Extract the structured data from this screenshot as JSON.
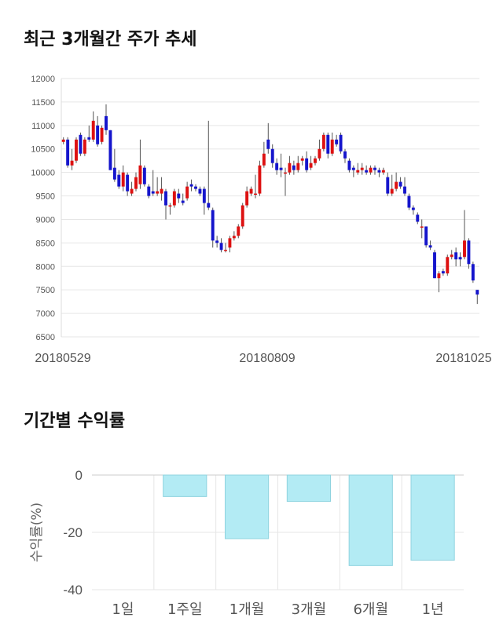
{
  "titles": {
    "price_trend": "최근 3개월간 주가 추세",
    "period_returns": "기간별 수익률"
  },
  "colors": {
    "up": "#dd1111",
    "down": "#1515cc",
    "bar_fill": "#b3ebf4",
    "bar_stroke": "#8fd3df",
    "grid": "#e6e6e6"
  },
  "chart_data": [
    {
      "type": "candlestick",
      "ylim": [
        6500,
        12000
      ],
      "yticks": [
        6500,
        7000,
        7500,
        8000,
        8500,
        9000,
        9500,
        10000,
        10500,
        11000,
        11500,
        12000
      ],
      "xtick_labels": [
        "20180529",
        "20180809",
        "20181025"
      ],
      "grid": true,
      "candles": [
        [
          10650,
          10700,
          10600,
          10750
        ],
        [
          10700,
          10150,
          10100,
          10750
        ],
        [
          10150,
          10250,
          10050,
          10500
        ],
        [
          10250,
          10700,
          10200,
          10750
        ],
        [
          10800,
          10400,
          10350,
          10850
        ],
        [
          10400,
          10700,
          10350,
          10750
        ],
        [
          10750,
          10700,
          10650,
          11000
        ],
        [
          10700,
          11100,
          10650,
          11300
        ],
        [
          11000,
          10600,
          10550,
          11200
        ],
        [
          10650,
          10950,
          10600,
          11000
        ],
        [
          11200,
          10900,
          10800,
          11450
        ],
        [
          10900,
          10050,
          10050,
          10900
        ],
        [
          10100,
          9850,
          9800,
          10500
        ],
        [
          9950,
          9700,
          9650,
          10050
        ],
        [
          9700,
          10000,
          9600,
          10150
        ],
        [
          9950,
          9600,
          9500,
          10000
        ],
        [
          9550,
          9650,
          9500,
          9800
        ],
        [
          9650,
          9900,
          9600,
          10000
        ],
        [
          9750,
          10150,
          9650,
          10700
        ],
        [
          10100,
          9750,
          9700,
          10150
        ],
        [
          9700,
          9500,
          9450,
          9750
        ],
        [
          9600,
          9550,
          9500,
          10050
        ],
        [
          9550,
          9600,
          9500,
          9900
        ],
        [
          9550,
          9650,
          9400,
          9900
        ],
        [
          9600,
          9300,
          9000,
          9650
        ],
        [
          9300,
          9300,
          9100,
          9350
        ],
        [
          9300,
          9600,
          9250,
          9650
        ],
        [
          9550,
          9450,
          9350,
          9650
        ],
        [
          9400,
          9350,
          9300,
          9550
        ],
        [
          9450,
          9700,
          9400,
          9800
        ],
        [
          9750,
          9700,
          9600,
          9850
        ],
        [
          9700,
          9650,
          9600,
          9750
        ],
        [
          9650,
          9550,
          9500,
          9700
        ],
        [
          9650,
          9350,
          9100,
          9700
        ],
        [
          9350,
          9250,
          9200,
          11100
        ],
        [
          9200,
          8550,
          8400,
          9250
        ],
        [
          8550,
          8500,
          8400,
          8650
        ],
        [
          8500,
          8350,
          8300,
          8600
        ],
        [
          8350,
          8350,
          8300,
          8500
        ],
        [
          8400,
          8600,
          8300,
          8650
        ],
        [
          8600,
          8650,
          8550,
          8750
        ],
        [
          8650,
          8850,
          8600,
          8900
        ],
        [
          8850,
          9300,
          8800,
          9350
        ],
        [
          9300,
          9600,
          9250,
          9700
        ],
        [
          9550,
          9650,
          9500,
          9700
        ],
        [
          9550,
          9550,
          9450,
          9950
        ],
        [
          9550,
          10150,
          9500,
          10250
        ],
        [
          10150,
          10400,
          10100,
          10650
        ],
        [
          10700,
          10500,
          10400,
          11050
        ],
        [
          10500,
          10200,
          10100,
          10600
        ],
        [
          10200,
          10050,
          9950,
          10300
        ],
        [
          10100,
          10050,
          9900,
          10400
        ],
        [
          10000,
          10000,
          9500,
          10100
        ],
        [
          10000,
          10200,
          9950,
          10350
        ],
        [
          10150,
          10050,
          9950,
          10250
        ],
        [
          10050,
          10200,
          10000,
          10350
        ],
        [
          10250,
          10300,
          10150,
          10350
        ],
        [
          10300,
          10050,
          10000,
          10450
        ],
        [
          10100,
          10200,
          10050,
          10350
        ],
        [
          10200,
          10300,
          10150,
          10350
        ],
        [
          10300,
          10500,
          10250,
          10700
        ],
        [
          10500,
          10800,
          10450,
          10850
        ],
        [
          10800,
          10400,
          10300,
          10850
        ],
        [
          10400,
          10700,
          10350,
          10850
        ],
        [
          10700,
          10600,
          10550,
          10800
        ],
        [
          10800,
          10450,
          10400,
          10850
        ],
        [
          10450,
          10300,
          10200,
          10500
        ],
        [
          10250,
          10050,
          10000,
          10300
        ],
        [
          10100,
          10050,
          9900,
          10150
        ],
        [
          10000,
          10050,
          9950,
          10200
        ],
        [
          10050,
          10100,
          9950,
          10200
        ],
        [
          10050,
          10000,
          9950,
          10150
        ],
        [
          10000,
          10100,
          9950,
          10150
        ],
        [
          10100,
          10050,
          9950,
          10150
        ],
        [
          10050,
          10000,
          9900,
          10100
        ],
        [
          10000,
          10050,
          9950,
          10100
        ],
        [
          9900,
          9550,
          9500,
          10000
        ],
        [
          9550,
          9650,
          9500,
          9950
        ],
        [
          9650,
          9800,
          9600,
          10000
        ],
        [
          9800,
          9700,
          9650,
          9900
        ],
        [
          9700,
          9550,
          9500,
          9900
        ],
        [
          9500,
          9250,
          9200,
          9550
        ],
        [
          9250,
          9200,
          9100,
          9300
        ],
        [
          9100,
          8950,
          8900,
          9150
        ],
        [
          8850,
          8850,
          8600,
          9000
        ],
        [
          8850,
          8450,
          8400,
          8850
        ],
        [
          8450,
          8400,
          8350,
          8550
        ],
        [
          8300,
          7750,
          7750,
          8350
        ],
        [
          7750,
          7850,
          7450,
          7900
        ],
        [
          7900,
          7850,
          7800,
          7950
        ],
        [
          7850,
          8200,
          7800,
          8250
        ],
        [
          8200,
          8250,
          8150,
          8350
        ],
        [
          8300,
          8150,
          8000,
          8400
        ],
        [
          8200,
          8150,
          8000,
          8300
        ],
        [
          8200,
          8550,
          8150,
          9200
        ],
        [
          8550,
          8050,
          7950,
          8600
        ],
        [
          8050,
          7700,
          7650,
          8100
        ],
        [
          7500,
          7400,
          7200,
          7500
        ]
      ]
    },
    {
      "type": "bar",
      "ylabel": "수익률(%)",
      "ylim": [
        -40,
        0
      ],
      "yticks": [
        0,
        -20,
        -40
      ],
      "grid": true,
      "categories": [
        "1일",
        "1주일",
        "1개월",
        "3개월",
        "6개월",
        "1년"
      ],
      "values": [
        0,
        -7.5,
        -22.2,
        -9.2,
        -31.6,
        -29.7
      ]
    }
  ]
}
